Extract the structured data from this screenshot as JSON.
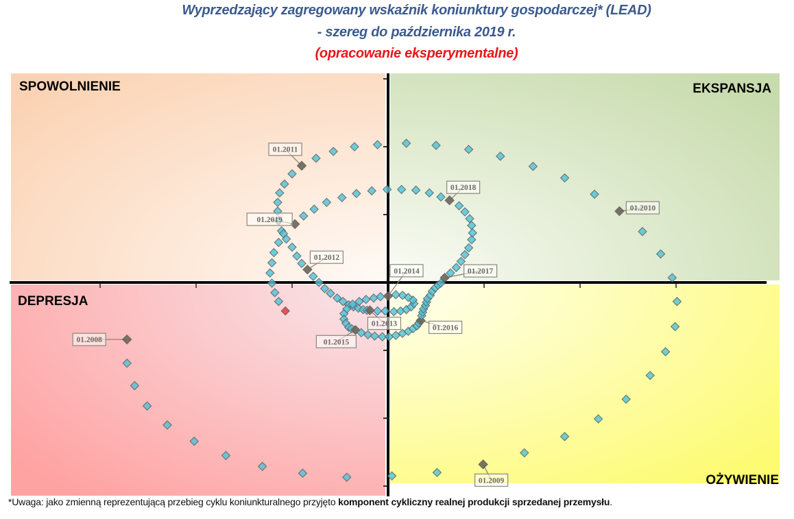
{
  "chart_data": {
    "type": "scatter",
    "title": "Wyprzedzający zagregowany wskaźnik koniunktury gospodarczej* (LEAD)",
    "subtitle": "- szereg do października 2019 r.",
    "note": "(opracowanie eksperymentalne)",
    "xlabel": "",
    "ylabel": "",
    "xlim": [
      -3.93,
      4.08
    ],
    "ylim": [
      -3.13,
      3.03
    ],
    "grid": false,
    "quadrants": {
      "top_left": {
        "label": "SPOWOLNIENIE",
        "color": "#e8731a"
      },
      "top_right": {
        "label": "EKSPANSJA",
        "color": "#1aa34a"
      },
      "bottom_left": {
        "label": "DEPRESJA",
        "color": "#e8161b"
      },
      "bottom_right": {
        "label": "OŻYWIENIE",
        "color": "#1aa7e0"
      }
    },
    "colors": {
      "marker": "#4fc3d9",
      "highlight": "#6b6658",
      "last": "#e84a4a"
    },
    "points": [
      {
        "x": -2.72,
        "y": -0.84,
        "label": "01.2008"
      },
      {
        "x": -2.72,
        "y": -1.19
      },
      {
        "x": -2.64,
        "y": -1.52
      },
      {
        "x": -2.51,
        "y": -1.82
      },
      {
        "x": -2.3,
        "y": -2.1
      },
      {
        "x": -2.02,
        "y": -2.34
      },
      {
        "x": -1.69,
        "y": -2.55
      },
      {
        "x": -1.31,
        "y": -2.71
      },
      {
        "x": -0.89,
        "y": -2.81
      },
      {
        "x": -0.43,
        "y": -2.87
      },
      {
        "x": 0.04,
        "y": -2.85
      },
      {
        "x": 0.51,
        "y": -2.8
      },
      {
        "x": 0.99,
        "y": -2.68,
        "label": "01.2009"
      },
      {
        "x": 1.42,
        "y": -2.51
      },
      {
        "x": 1.84,
        "y": -2.27
      },
      {
        "x": 2.19,
        "y": -2.01
      },
      {
        "x": 2.48,
        "y": -1.72
      },
      {
        "x": 2.73,
        "y": -1.37
      },
      {
        "x": 2.89,
        "y": -1.02
      },
      {
        "x": 2.99,
        "y": -0.65
      },
      {
        "x": 3.01,
        "y": -0.28
      },
      {
        "x": 2.96,
        "y": 0.07
      },
      {
        "x": 2.84,
        "y": 0.42
      },
      {
        "x": 2.65,
        "y": 0.75
      },
      {
        "x": 2.41,
        "y": 1.05,
        "label": "01.2010"
      },
      {
        "x": 2.15,
        "y": 1.3
      },
      {
        "x": 1.84,
        "y": 1.54
      },
      {
        "x": 1.51,
        "y": 1.71
      },
      {
        "x": 1.17,
        "y": 1.86
      },
      {
        "x": 0.84,
        "y": 1.96
      },
      {
        "x": 0.5,
        "y": 2.02
      },
      {
        "x": 0.19,
        "y": 2.05
      },
      {
        "x": -0.11,
        "y": 2.03
      },
      {
        "x": -0.35,
        "y": 2.0
      },
      {
        "x": -0.57,
        "y": 1.93
      },
      {
        "x": -0.75,
        "y": 1.83
      },
      {
        "x": -0.9,
        "y": 1.72,
        "label": "01.2011"
      },
      {
        "x": -1.0,
        "y": 1.6
      },
      {
        "x": -1.08,
        "y": 1.45
      },
      {
        "x": -1.13,
        "y": 1.32
      },
      {
        "x": -1.15,
        "y": 1.18
      },
      {
        "x": -1.15,
        "y": 1.05
      },
      {
        "x": -1.14,
        "y": 0.91
      },
      {
        "x": -1.11,
        "y": 0.76
      },
      {
        "x": -1.06,
        "y": 0.64
      },
      {
        "x": -1.0,
        "y": 0.52
      },
      {
        "x": -0.95,
        "y": 0.39
      },
      {
        "x": -0.9,
        "y": 0.28
      },
      {
        "x": -0.84,
        "y": 0.19,
        "label": "01.2012"
      },
      {
        "x": -0.78,
        "y": 0.09
      },
      {
        "x": -0.72,
        "y": 0.0
      },
      {
        "x": -0.66,
        "y": -0.09
      },
      {
        "x": -0.6,
        "y": -0.16
      },
      {
        "x": -0.53,
        "y": -0.23
      },
      {
        "x": -0.47,
        "y": -0.28
      },
      {
        "x": -0.41,
        "y": -0.33
      },
      {
        "x": -0.36,
        "y": -0.36
      },
      {
        "x": -0.31,
        "y": -0.38
      },
      {
        "x": -0.26,
        "y": -0.4
      },
      {
        "x": -0.22,
        "y": -0.41
      },
      {
        "x": -0.19,
        "y": -0.41,
        "label": "01.2013"
      },
      {
        "x": -0.11,
        "y": -0.42
      },
      {
        "x": -0.03,
        "y": -0.42
      },
      {
        "x": 0.06,
        "y": -0.43
      },
      {
        "x": 0.13,
        "y": -0.42
      },
      {
        "x": 0.19,
        "y": -0.4
      },
      {
        "x": 0.24,
        "y": -0.36
      },
      {
        "x": 0.27,
        "y": -0.31
      },
      {
        "x": 0.26,
        "y": -0.26
      },
      {
        "x": 0.21,
        "y": -0.22
      },
      {
        "x": 0.15,
        "y": -0.19
      },
      {
        "x": 0.08,
        "y": -0.18
      },
      {
        "x": 0.0,
        "y": -0.2,
        "label": "01.2014"
      },
      {
        "x": -0.08,
        "y": -0.21
      },
      {
        "x": -0.15,
        "y": -0.23
      },
      {
        "x": -0.23,
        "y": -0.25
      },
      {
        "x": -0.3,
        "y": -0.28
      },
      {
        "x": -0.37,
        "y": -0.32
      },
      {
        "x": -0.43,
        "y": -0.39
      },
      {
        "x": -0.46,
        "y": -0.46
      },
      {
        "x": -0.46,
        "y": -0.54
      },
      {
        "x": -0.44,
        "y": -0.6
      },
      {
        "x": -0.41,
        "y": -0.66
      },
      {
        "x": -0.38,
        "y": -0.68
      },
      {
        "x": -0.34,
        "y": -0.7,
        "label": "01.2015"
      },
      {
        "x": -0.28,
        "y": -0.74
      },
      {
        "x": -0.21,
        "y": -0.77
      },
      {
        "x": -0.14,
        "y": -0.79
      },
      {
        "x": -0.06,
        "y": -0.8
      },
      {
        "x": 0.01,
        "y": -0.8
      },
      {
        "x": 0.08,
        "y": -0.78
      },
      {
        "x": 0.15,
        "y": -0.75
      },
      {
        "x": 0.21,
        "y": -0.72
      },
      {
        "x": 0.26,
        "y": -0.68
      },
      {
        "x": 0.3,
        "y": -0.64
      },
      {
        "x": 0.32,
        "y": -0.6
      },
      {
        "x": 0.34,
        "y": -0.56,
        "label": "01.2016"
      },
      {
        "x": 0.35,
        "y": -0.49
      },
      {
        "x": 0.36,
        "y": -0.44
      },
      {
        "x": 0.37,
        "y": -0.39
      },
      {
        "x": 0.39,
        "y": -0.34
      },
      {
        "x": 0.4,
        "y": -0.29
      },
      {
        "x": 0.41,
        "y": -0.24
      },
      {
        "x": 0.44,
        "y": -0.19
      },
      {
        "x": 0.46,
        "y": -0.13
      },
      {
        "x": 0.49,
        "y": -0.08
      },
      {
        "x": 0.52,
        "y": -0.04
      },
      {
        "x": 0.55,
        "y": -0.01
      },
      {
        "x": 0.59,
        "y": 0.07,
        "label": "01.2017"
      },
      {
        "x": 0.65,
        "y": 0.14
      },
      {
        "x": 0.71,
        "y": 0.22
      },
      {
        "x": 0.76,
        "y": 0.31
      },
      {
        "x": 0.8,
        "y": 0.41
      },
      {
        "x": 0.84,
        "y": 0.51
      },
      {
        "x": 0.87,
        "y": 0.63
      },
      {
        "x": 0.88,
        "y": 0.73
      },
      {
        "x": 0.87,
        "y": 0.84
      },
      {
        "x": 0.85,
        "y": 0.94
      },
      {
        "x": 0.8,
        "y": 1.04
      },
      {
        "x": 0.74,
        "y": 1.13
      },
      {
        "x": 0.64,
        "y": 1.21,
        "label": "01.2018"
      },
      {
        "x": 0.55,
        "y": 1.26
      },
      {
        "x": 0.43,
        "y": 1.32
      },
      {
        "x": 0.29,
        "y": 1.36
      },
      {
        "x": 0.14,
        "y": 1.37
      },
      {
        "x": -0.01,
        "y": 1.37
      },
      {
        "x": -0.17,
        "y": 1.35
      },
      {
        "x": -0.33,
        "y": 1.31
      },
      {
        "x": -0.48,
        "y": 1.25
      },
      {
        "x": -0.64,
        "y": 1.18
      },
      {
        "x": -0.77,
        "y": 1.08
      },
      {
        "x": -0.88,
        "y": 0.98
      },
      {
        "x": -0.97,
        "y": 0.86,
        "label": "01.2019"
      },
      {
        "x": -1.09,
        "y": 0.72
      },
      {
        "x": -1.14,
        "y": 0.59
      },
      {
        "x": -1.19,
        "y": 0.44
      },
      {
        "x": -1.21,
        "y": 0.29
      },
      {
        "x": -1.23,
        "y": 0.14
      },
      {
        "x": -1.21,
        "y": -0.01
      },
      {
        "x": -1.18,
        "y": -0.15
      },
      {
        "x": -1.14,
        "y": -0.28
      },
      {
        "x": -1.07,
        "y": -0.42
      }
    ]
  },
  "footnote": {
    "prefix": "*Uwaga: jako zmienną reprezentującą przebieg cyklu koniunkturalnego przyjęto ",
    "bold": "komponent cykliczny realnej produkcji sprzedanej przemysłu",
    "suffix": "."
  }
}
